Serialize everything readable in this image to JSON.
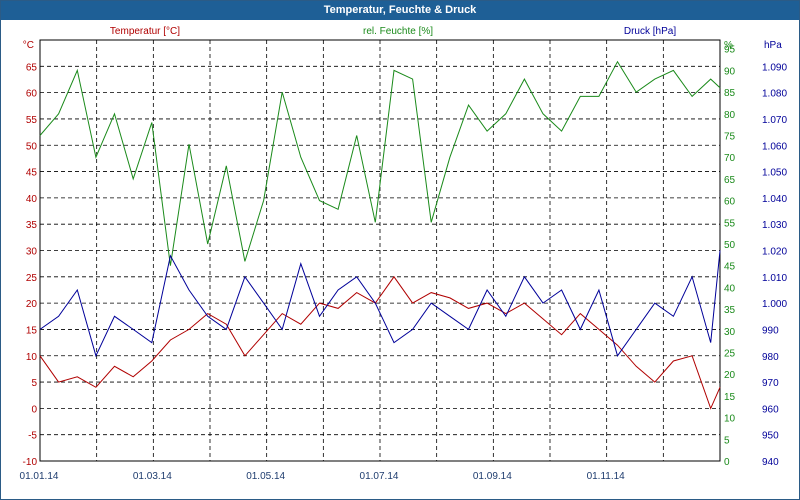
{
  "window": {
    "title": "Temperatur, Feuchte & Druck"
  },
  "chart_data": {
    "type": "line",
    "title": "Temperatur, Feuchte & Druck",
    "x_ticks": [
      "01.01.14",
      "01.03.14",
      "01.05.14",
      "01.07.14",
      "01.09.14",
      "01.11.14"
    ],
    "x_range_days": [
      0,
      365
    ],
    "grid": true,
    "axes": [
      {
        "id": "temp",
        "label": "Temperatur [°C]",
        "unit": "°C",
        "color": "#b00000",
        "range": [
          -10,
          70
        ],
        "ticks": [
          -10,
          -5,
          0,
          5,
          10,
          15,
          20,
          25,
          30,
          35,
          40,
          45,
          50,
          55,
          60,
          65
        ]
      },
      {
        "id": "hum",
        "label": "rel. Feuchte [%]",
        "unit": "%",
        "color": "#1a8a1a",
        "range": [
          0,
          97
        ],
        "ticks": [
          0,
          5,
          10,
          15,
          20,
          25,
          30,
          35,
          40,
          45,
          50,
          55,
          60,
          65,
          70,
          75,
          80,
          85,
          90,
          95
        ]
      },
      {
        "id": "press",
        "label": "Druck [hPa]",
        "unit": "hPa",
        "color": "#000099",
        "range": [
          940,
          1100
        ],
        "ticks": [
          "940",
          "950",
          "960",
          "970",
          "980",
          "990",
          "1.000",
          "1.010",
          "1.020",
          "1.030",
          "1.040",
          "1.050",
          "1.060",
          "1.070",
          "1.080",
          "1.090"
        ]
      }
    ],
    "series": [
      {
        "name": "Temperatur [°C]",
        "axis": "temp",
        "color": "#b00000",
        "x": [
          0,
          10,
          20,
          30,
          40,
          50,
          60,
          70,
          80,
          90,
          100,
          110,
          120,
          130,
          140,
          150,
          160,
          170,
          180,
          190,
          200,
          210,
          220,
          230,
          240,
          250,
          260,
          270,
          280,
          290,
          300,
          310,
          320,
          330,
          340,
          350,
          360,
          365
        ],
        "y": [
          10,
          5,
          6,
          4,
          8,
          6,
          9,
          13,
          15,
          18,
          16,
          10,
          14,
          18,
          16,
          20,
          19,
          22,
          20,
          25,
          20,
          22,
          21,
          19,
          20,
          18,
          20,
          17,
          14,
          18,
          15,
          12,
          8,
          5,
          9,
          10,
          0,
          4
        ]
      },
      {
        "name": "rel. Feuchte [%]",
        "axis": "hum",
        "color": "#1a8a1a",
        "x": [
          0,
          10,
          20,
          30,
          40,
          50,
          60,
          70,
          80,
          90,
          100,
          110,
          120,
          130,
          140,
          150,
          160,
          170,
          180,
          190,
          200,
          210,
          220,
          230,
          240,
          250,
          260,
          270,
          280,
          290,
          300,
          310,
          320,
          330,
          340,
          350,
          360,
          365
        ],
        "y": [
          75,
          80,
          90,
          70,
          80,
          65,
          78,
          45,
          73,
          50,
          68,
          46,
          60,
          85,
          70,
          60,
          58,
          75,
          55,
          90,
          88,
          55,
          70,
          82,
          76,
          80,
          88,
          80,
          76,
          84,
          84,
          92,
          85,
          88,
          90,
          84,
          88,
          86
        ]
      },
      {
        "name": "Druck [hPa]",
        "axis": "press",
        "color": "#000099",
        "x": [
          0,
          10,
          20,
          30,
          40,
          50,
          60,
          70,
          80,
          90,
          100,
          110,
          120,
          130,
          140,
          150,
          160,
          170,
          180,
          190,
          200,
          210,
          220,
          230,
          240,
          250,
          260,
          270,
          280,
          290,
          300,
          310,
          320,
          330,
          340,
          350,
          360,
          365
        ],
        "y": [
          990,
          995,
          1005,
          980,
          995,
          990,
          985,
          1018,
          1005,
          995,
          990,
          1010,
          1000,
          990,
          1015,
          995,
          1005,
          1010,
          1000,
          985,
          990,
          1000,
          995,
          990,
          1005,
          995,
          1010,
          1000,
          1005,
          990,
          1005,
          980,
          990,
          1000,
          995,
          1010,
          985,
          1020
        ]
      }
    ]
  }
}
